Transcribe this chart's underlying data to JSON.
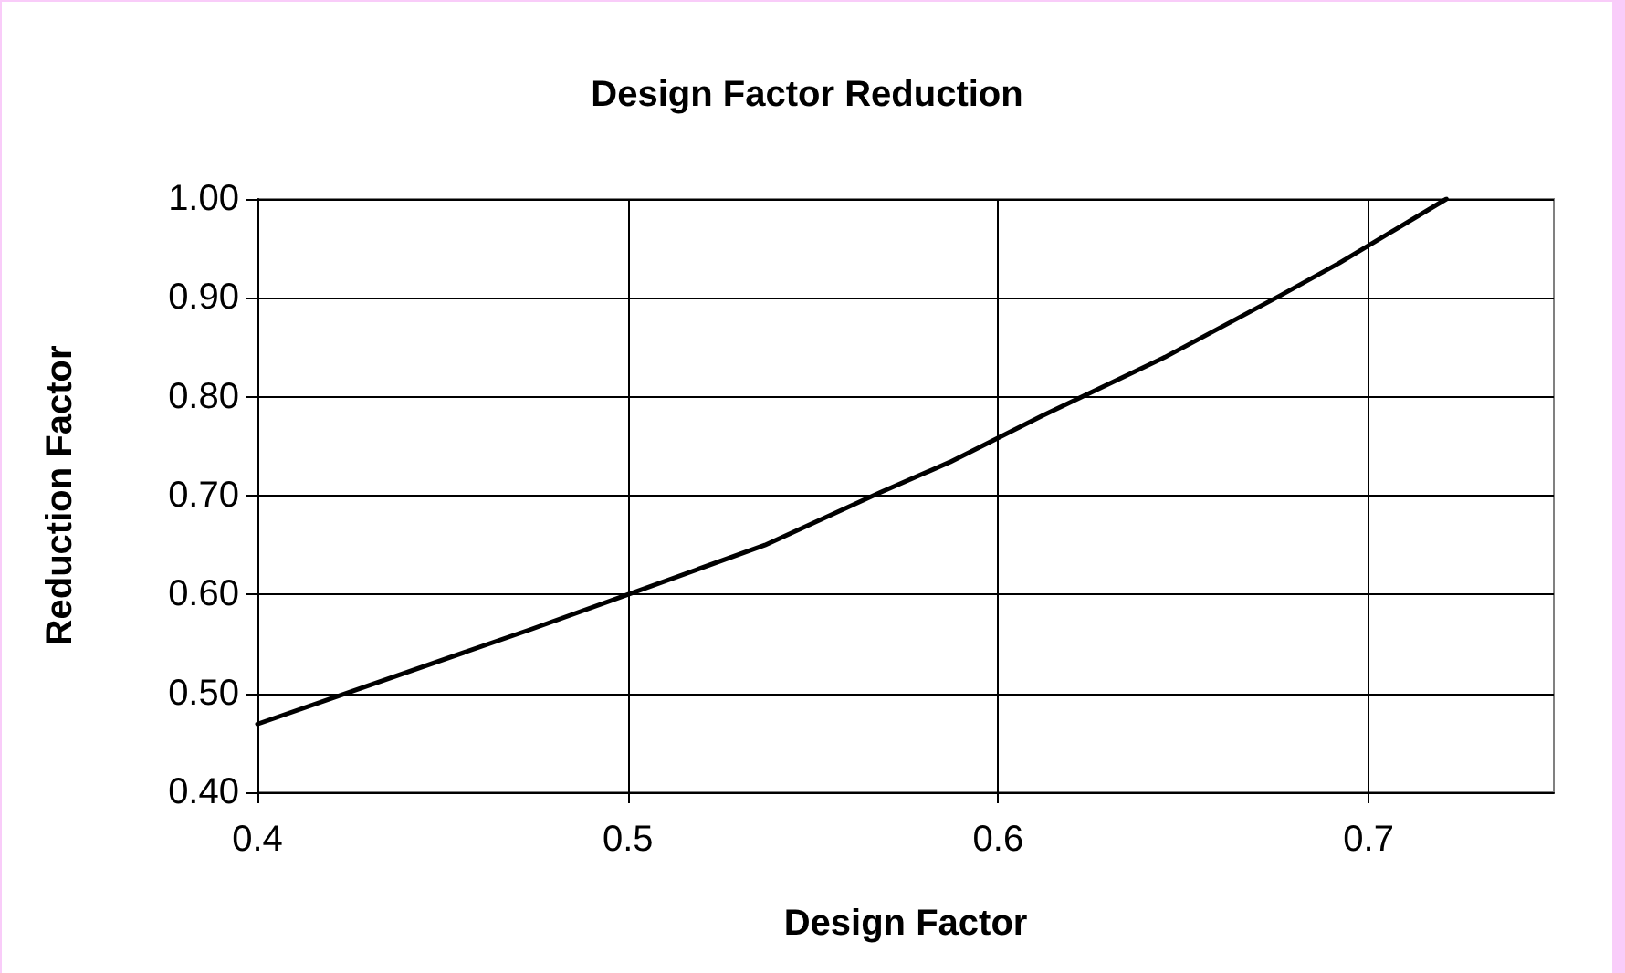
{
  "chart_data": {
    "type": "line",
    "title": "Design Factor Reduction",
    "xlabel": "Design Factor",
    "ylabel": "Reduction Factor",
    "x": [
      0.4,
      0.474,
      0.5,
      0.537,
      0.568,
      0.587,
      0.612,
      0.645,
      0.676,
      0.692,
      0.721
    ],
    "series": [
      {
        "color": "#000000",
        "values": [
          0.469,
          0.565,
          0.6,
          0.65,
          0.703,
          0.734,
          0.781,
          0.84,
          0.902,
          0.935,
          1.0
        ]
      }
    ],
    "xlim": [
      0.4,
      0.75
    ],
    "xticks": [
      0.4,
      0.5,
      0.6,
      0.7
    ],
    "ylim": [
      0.4,
      1.0
    ],
    "yticks": [
      {
        "value": 0.4,
        "label": "0.40"
      },
      {
        "value": 0.5,
        "label": "0.50"
      },
      {
        "value": 0.6,
        "label": "0.60"
      },
      {
        "value": 0.7,
        "label": "0.70"
      },
      {
        "value": 0.8,
        "label": "0.80"
      },
      {
        "value": 0.9,
        "label": "0.90"
      },
      {
        "value": 1.0,
        "label": "1.00"
      }
    ],
    "grid": true,
    "marker": "none",
    "line_style": "solid"
  }
}
